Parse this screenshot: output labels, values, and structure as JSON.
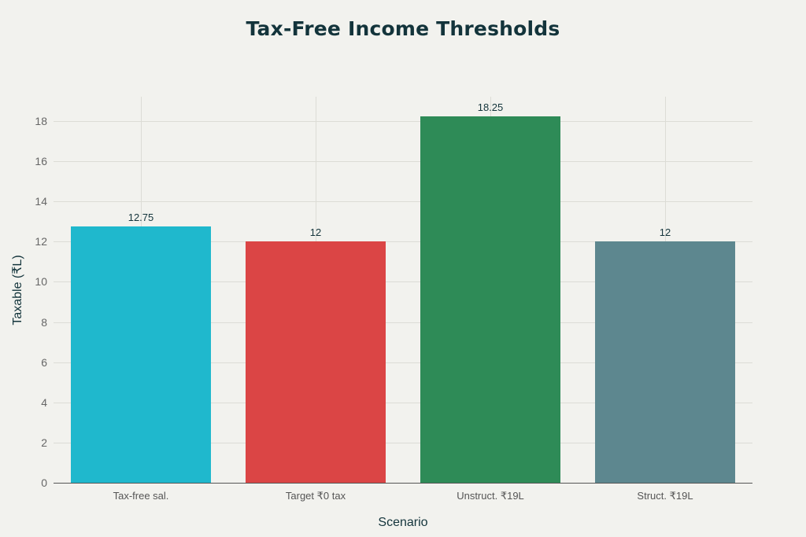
{
  "chart_data": {
    "type": "bar",
    "title": "Tax-Free Income Thresholds",
    "xlabel": "Scenario",
    "ylabel": "Taxable (₹L)",
    "categories": [
      "Tax-free sal.",
      "Target ₹0 tax",
      "Unstruct. ₹19L",
      "Struct. ₹19L"
    ],
    "values": [
      12.75,
      12,
      18.25,
      12
    ],
    "data_labels": [
      "12.75",
      "12",
      "18.25",
      "12"
    ],
    "colors": [
      "#1fb8cd",
      "#db4545",
      "#2e8b57",
      "#5d878f"
    ],
    "ylim": [
      0,
      19.25
    ],
    "yticks": [
      0,
      2,
      4,
      6,
      8,
      10,
      12,
      14,
      16,
      18
    ],
    "grid": true,
    "legend": "none"
  }
}
